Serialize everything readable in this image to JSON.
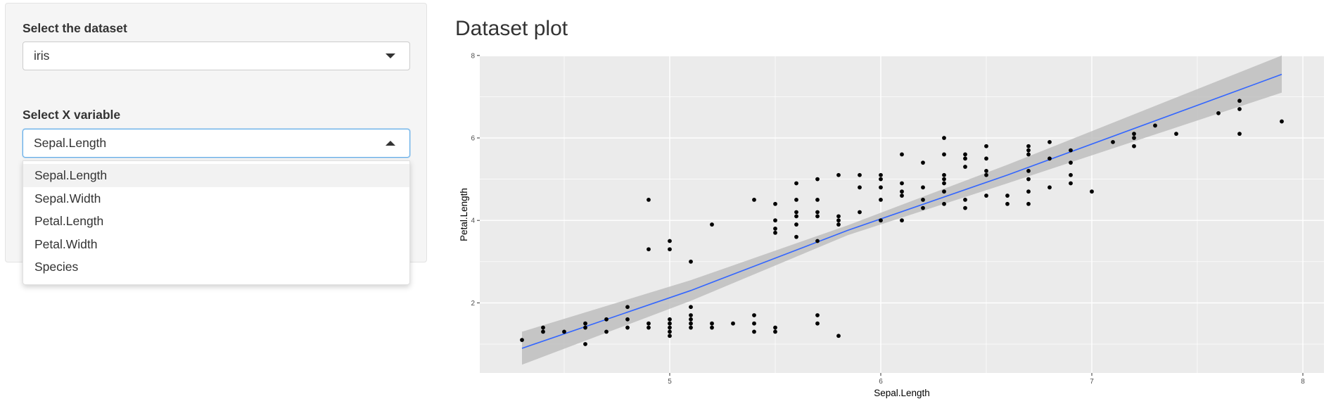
{
  "sidebar": {
    "dataset_label": "Select the dataset",
    "dataset_value": "iris",
    "xvar_label": "Select X variable",
    "xvar_value": "Sepal.Length",
    "xvar_options": [
      "Sepal.Length",
      "Sepal.Width",
      "Petal.Length",
      "Petal.Width",
      "Species"
    ],
    "xvar_highlighted": "Sepal.Length"
  },
  "main": {
    "title": "Dataset plot"
  },
  "chart_data": {
    "type": "scatter",
    "xlabel": "Sepal.Length",
    "ylabel": "Petal.Length",
    "xlim": [
      4.1,
      8.1
    ],
    "ylim": [
      0.3,
      7.98
    ],
    "xticks": [
      5,
      6,
      7,
      8
    ],
    "yticks": [
      2,
      4,
      6,
      8
    ],
    "grid": true,
    "background": "#ebebeb",
    "point_color": "#000000",
    "fit_line": {
      "method": "linear",
      "color": "#3366ff",
      "band_color": "#bebebe",
      "x": [
        4.3,
        5.1,
        5.843,
        6.6,
        7.9
      ],
      "y": [
        0.898,
        2.3,
        3.758,
        5.1,
        7.542
      ],
      "lower": [
        0.5,
        2.05,
        3.64,
        4.9,
        7.1
      ],
      "upper": [
        1.3,
        2.55,
        3.88,
        5.35,
        8.0
      ]
    },
    "points": [
      [
        4.3,
        1.1
      ],
      [
        4.4,
        1.4
      ],
      [
        4.4,
        1.3
      ],
      [
        4.5,
        1.3
      ],
      [
        4.6,
        1.5
      ],
      [
        4.6,
        1.4
      ],
      [
        4.6,
        1.0
      ],
      [
        4.7,
        1.6
      ],
      [
        4.7,
        1.3
      ],
      [
        4.8,
        1.9
      ],
      [
        4.8,
        1.6
      ],
      [
        4.8,
        1.4
      ],
      [
        4.9,
        1.5
      ],
      [
        4.9,
        1.4
      ],
      [
        4.9,
        3.3
      ],
      [
        4.9,
        4.5
      ],
      [
        5.0,
        1.6
      ],
      [
        5.0,
        1.5
      ],
      [
        5.0,
        1.4
      ],
      [
        5.0,
        1.3
      ],
      [
        5.0,
        1.2
      ],
      [
        5.0,
        3.3
      ],
      [
        5.0,
        3.5
      ],
      [
        5.1,
        1.9
      ],
      [
        5.1,
        1.7
      ],
      [
        5.1,
        1.6
      ],
      [
        5.1,
        1.5
      ],
      [
        5.1,
        1.4
      ],
      [
        5.1,
        3.0
      ],
      [
        5.2,
        1.5
      ],
      [
        5.2,
        1.4
      ],
      [
        5.2,
        3.9
      ],
      [
        5.3,
        1.5
      ],
      [
        5.4,
        1.7
      ],
      [
        5.4,
        1.5
      ],
      [
        5.4,
        1.3
      ],
      [
        5.4,
        4.5
      ],
      [
        5.5,
        1.4
      ],
      [
        5.5,
        1.3
      ],
      [
        5.5,
        3.7
      ],
      [
        5.5,
        3.8
      ],
      [
        5.5,
        4.0
      ],
      [
        5.5,
        4.4
      ],
      [
        5.6,
        3.6
      ],
      [
        5.6,
        3.9
      ],
      [
        5.6,
        4.1
      ],
      [
        5.6,
        4.2
      ],
      [
        5.6,
        4.5
      ],
      [
        5.6,
        4.9
      ],
      [
        5.7,
        1.7
      ],
      [
        5.7,
        1.5
      ],
      [
        5.7,
        3.5
      ],
      [
        5.7,
        4.1
      ],
      [
        5.7,
        4.2
      ],
      [
        5.7,
        4.5
      ],
      [
        5.7,
        5.0
      ],
      [
        5.8,
        1.2
      ],
      [
        5.8,
        3.9
      ],
      [
        5.8,
        4.0
      ],
      [
        5.8,
        4.1
      ],
      [
        5.8,
        5.1
      ],
      [
        5.9,
        4.2
      ],
      [
        5.9,
        4.8
      ],
      [
        5.9,
        5.1
      ],
      [
        6.0,
        4.0
      ],
      [
        6.0,
        4.5
      ],
      [
        6.0,
        4.8
      ],
      [
        6.0,
        5.0
      ],
      [
        6.0,
        5.1
      ],
      [
        6.1,
        4.0
      ],
      [
        6.1,
        4.6
      ],
      [
        6.1,
        4.7
      ],
      [
        6.1,
        4.9
      ],
      [
        6.1,
        5.6
      ],
      [
        6.2,
        4.3
      ],
      [
        6.2,
        4.5
      ],
      [
        6.2,
        4.8
      ],
      [
        6.2,
        5.4
      ],
      [
        6.3,
        4.4
      ],
      [
        6.3,
        4.7
      ],
      [
        6.3,
        4.9
      ],
      [
        6.3,
        5.0
      ],
      [
        6.3,
        5.1
      ],
      [
        6.3,
        5.6
      ],
      [
        6.3,
        6.0
      ],
      [
        6.4,
        4.3
      ],
      [
        6.4,
        4.5
      ],
      [
        6.4,
        5.3
      ],
      [
        6.4,
        5.5
      ],
      [
        6.4,
        5.6
      ],
      [
        6.5,
        4.6
      ],
      [
        6.5,
        5.1
      ],
      [
        6.5,
        5.2
      ],
      [
        6.5,
        5.5
      ],
      [
        6.5,
        5.8
      ],
      [
        6.6,
        4.4
      ],
      [
        6.6,
        4.6
      ],
      [
        6.7,
        4.4
      ],
      [
        6.7,
        4.7
      ],
      [
        6.7,
        5.0
      ],
      [
        6.7,
        5.2
      ],
      [
        6.7,
        5.6
      ],
      [
        6.7,
        5.7
      ],
      [
        6.7,
        5.8
      ],
      [
        6.8,
        4.8
      ],
      [
        6.8,
        5.5
      ],
      [
        6.8,
        5.9
      ],
      [
        6.9,
        4.9
      ],
      [
        6.9,
        5.1
      ],
      [
        6.9,
        5.4
      ],
      [
        6.9,
        5.7
      ],
      [
        7.0,
        4.7
      ],
      [
        7.1,
        5.9
      ],
      [
        7.2,
        5.8
      ],
      [
        7.2,
        6.0
      ],
      [
        7.2,
        6.1
      ],
      [
        7.3,
        6.3
      ],
      [
        7.4,
        6.1
      ],
      [
        7.6,
        6.6
      ],
      [
        7.7,
        6.1
      ],
      [
        7.7,
        6.7
      ],
      [
        7.7,
        6.9
      ],
      [
        7.9,
        6.4
      ]
    ]
  }
}
